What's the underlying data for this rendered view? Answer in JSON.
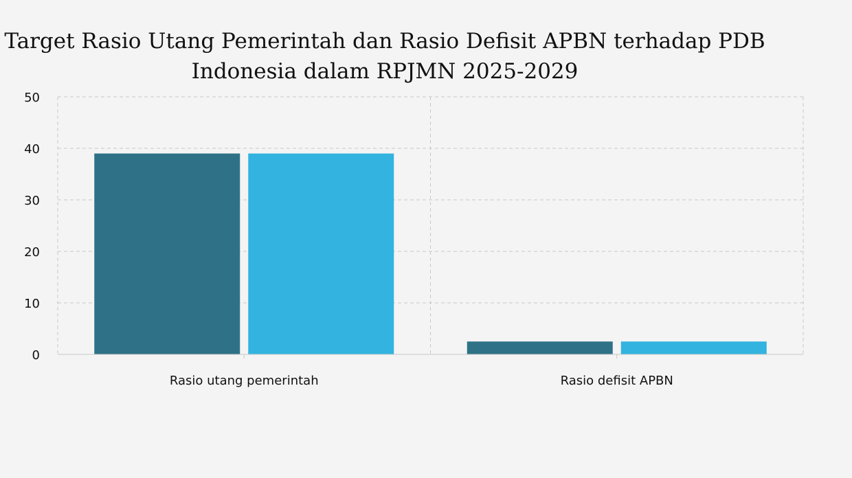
{
  "chart_data": {
    "type": "bar",
    "title": {
      "line1": "Target Rasio Utang Pemerintah dan Rasio Defisit APBN terhadap PDB",
      "line2": "Indonesia dalam RPJMN 2025-2029"
    },
    "xlabel": "",
    "ylabel": "",
    "ylim": [
      0,
      50
    ],
    "yticks": [
      "0",
      "10",
      "20",
      "30",
      "40",
      "50"
    ],
    "categories": [
      "Rasio utang pemerintah",
      "Rasio defisit APBN"
    ],
    "series": [
      {
        "values": [
          39,
          2.5
        ],
        "color": "#2f7287"
      },
      {
        "values": [
          39,
          2.5
        ],
        "color": "#33b3df"
      }
    ],
    "grid": true,
    "legend": "none"
  }
}
